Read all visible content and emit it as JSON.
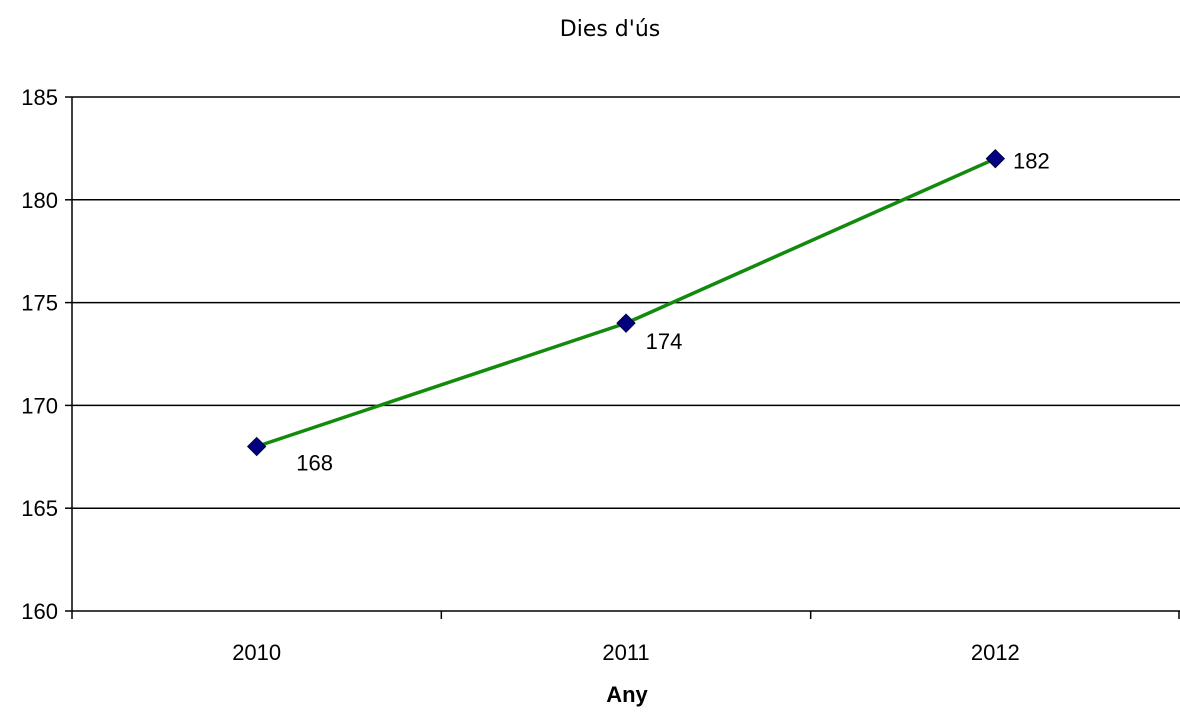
{
  "chart_data": {
    "type": "line",
    "title": "Dies d'ús",
    "xlabel": "Any",
    "ylabel": "",
    "categories": [
      "2010",
      "2011",
      "2012"
    ],
    "series": [
      {
        "values": [
          168,
          174,
          182
        ],
        "line_color": "#138a0e",
        "marker_color": "#000080",
        "marker": "diamond",
        "data_labels": [
          "168",
          "174",
          "182"
        ]
      }
    ],
    "ylim": [
      160,
      185
    ],
    "y_ticks": [
      "160",
      "165",
      "170",
      "175",
      "180",
      "185"
    ],
    "grid": true,
    "legend": "none"
  }
}
